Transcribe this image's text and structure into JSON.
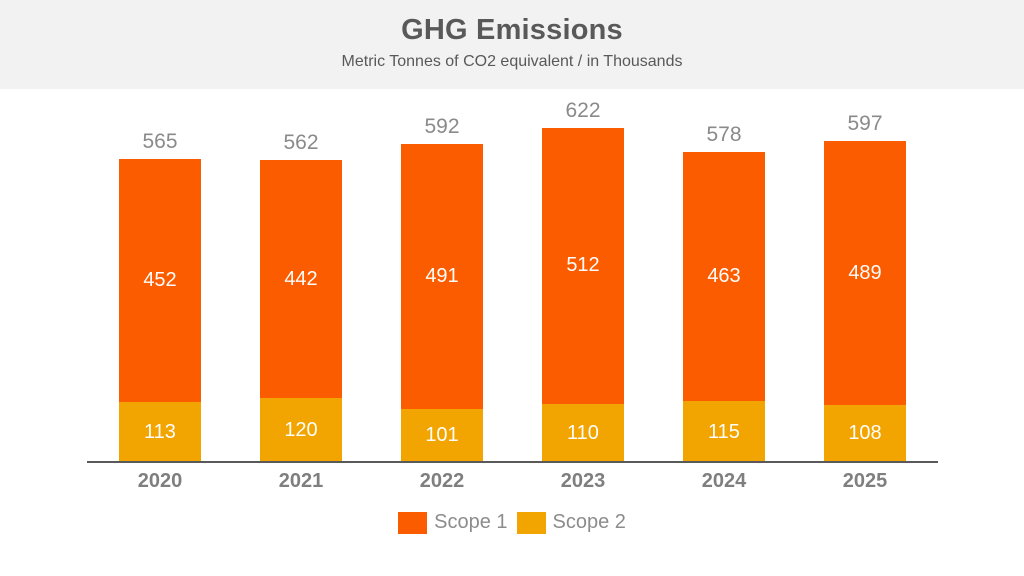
{
  "header": {
    "title": "GHG Emissions",
    "subtitle": "Metric Tonnes of CO2 equivalent / in Thousands"
  },
  "legend": {
    "items": [
      {
        "label": "Scope 1",
        "color": "#fb5c00"
      },
      {
        "label": "Scope 2",
        "color": "#f2a500"
      }
    ]
  },
  "chart_data": {
    "type": "bar",
    "stacked": true,
    "title": "GHG Emissions",
    "subtitle": "Metric Tonnes of CO2 equivalent / in Thousands",
    "categories": [
      "2020",
      "2021",
      "2022",
      "2023",
      "2024",
      "2025"
    ],
    "series": [
      {
        "name": "Scope 1",
        "color": "#fb5c00",
        "values": [
          452,
          442,
          491,
          512,
          463,
          489
        ]
      },
      {
        "name": "Scope 2",
        "color": "#f2a500",
        "values": [
          113,
          120,
          101,
          110,
          115,
          108
        ]
      }
    ],
    "totals": [
      565,
      562,
      592,
      622,
      578,
      597
    ],
    "xlabel": "",
    "ylabel": "",
    "ylim": [
      0,
      650
    ],
    "grid": false,
    "legend_position": "bottom",
    "value_labels": "inside-segments-and-total-above",
    "colors": {
      "header_background": "#f2f2f2",
      "title_text": "#595959",
      "total_label_text": "#8a8a8a",
      "segment_label_text": "#fdfdfb",
      "x_axis_label_text": "#7f7f7f",
      "axis_line": "#595959",
      "legend_text": "#8c8c8c"
    }
  }
}
